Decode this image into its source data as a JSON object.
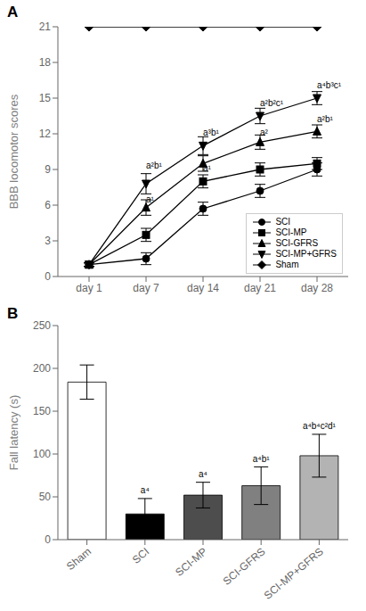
{
  "chart_data": [
    {
      "type": "line",
      "title": "A",
      "ylabel": "BBB locomotor scores",
      "categories": [
        "day 1",
        "day 7",
        "day 14",
        "day 21",
        "day 28"
      ],
      "series": [
        {
          "name": "SCI",
          "color": "#000000",
          "marker": "circle",
          "values": [
            1.0,
            1.5,
            5.7,
            7.2,
            9.0
          ],
          "errors": [
            0.15,
            0.5,
            0.55,
            0.55,
            0.55
          ]
        },
        {
          "name": "SCI-MP",
          "color": "#000000",
          "marker": "square",
          "values": [
            1.0,
            3.5,
            8.0,
            9.0,
            9.5
          ],
          "errors": [
            0.15,
            0.55,
            0.55,
            0.55,
            0.5
          ]
        },
        {
          "name": "SCI-GFRS",
          "color": "#000000",
          "marker": "triangle-up",
          "values": [
            1.0,
            5.8,
            9.5,
            11.3,
            12.2
          ],
          "errors": [
            0.15,
            0.65,
            0.65,
            0.6,
            0.55
          ]
        },
        {
          "name": "SCI-MP+GFRS",
          "color": "#000000",
          "marker": "triangle-down",
          "values": [
            1.0,
            7.8,
            11.0,
            13.5,
            15.0
          ],
          "errors": [
            0.15,
            0.85,
            0.75,
            0.65,
            0.55
          ]
        },
        {
          "name": "Sham",
          "color": "#000000",
          "marker": "diamond",
          "values": [
            21.0,
            21.0,
            21.0,
            21.0,
            21.0
          ]
        }
      ],
      "ylim": [
        0,
        21
      ],
      "yticks": [
        0,
        3,
        6,
        9,
        12,
        15,
        18,
        21
      ],
      "annotations": [
        {
          "text": "a²b¹",
          "x": "day 7",
          "y": 8.9
        },
        {
          "text": "a¹",
          "x": "day 7",
          "y": 6.1
        },
        {
          "text": "a¹",
          "x": "day 14",
          "y": 8.7
        },
        {
          "text": "a³b¹",
          "x": "day 14",
          "y": 11.7
        },
        {
          "text": "a²",
          "x": "day 21",
          "y": 11.7
        },
        {
          "text": "a²b²c¹",
          "x": "day 21",
          "y": 14.2
        },
        {
          "text": "a²b¹",
          "x": "day 28",
          "y": 12.8
        },
        {
          "text": "a⁴b³c¹",
          "x": "day 28",
          "y": 15.7
        }
      ],
      "legend": "lower right",
      "grid": false
    },
    {
      "type": "bar",
      "title": "B",
      "ylabel": "Fall latency (s)",
      "categories": [
        "Sham",
        "SCI",
        "SCI-MP",
        "SCI-GFRS",
        "SCI-MP+GFRS"
      ],
      "values": [
        184,
        30,
        52,
        63,
        98
      ],
      "errors": [
        20,
        18,
        15,
        22,
        25
      ],
      "colors": [
        "#ffffff",
        "#000000",
        "#4d4d4d",
        "#808080",
        "#b3b3b3"
      ],
      "ylim": [
        0,
        250
      ],
      "yticks": [
        0,
        50,
        100,
        150,
        200,
        250
      ],
      "annotations": [
        {
          "x": "SCI",
          "y": 52,
          "text": "a⁴"
        },
        {
          "x": "SCI-MP",
          "y": 71,
          "text": "a⁴"
        },
        {
          "x": "SCI-GFRS",
          "y": 89,
          "text": "a⁴b¹"
        },
        {
          "x": "SCI-MP+GFRS",
          "y": 127,
          "text": "a⁴b⁴c²d¹"
        }
      ],
      "grid": false
    }
  ]
}
